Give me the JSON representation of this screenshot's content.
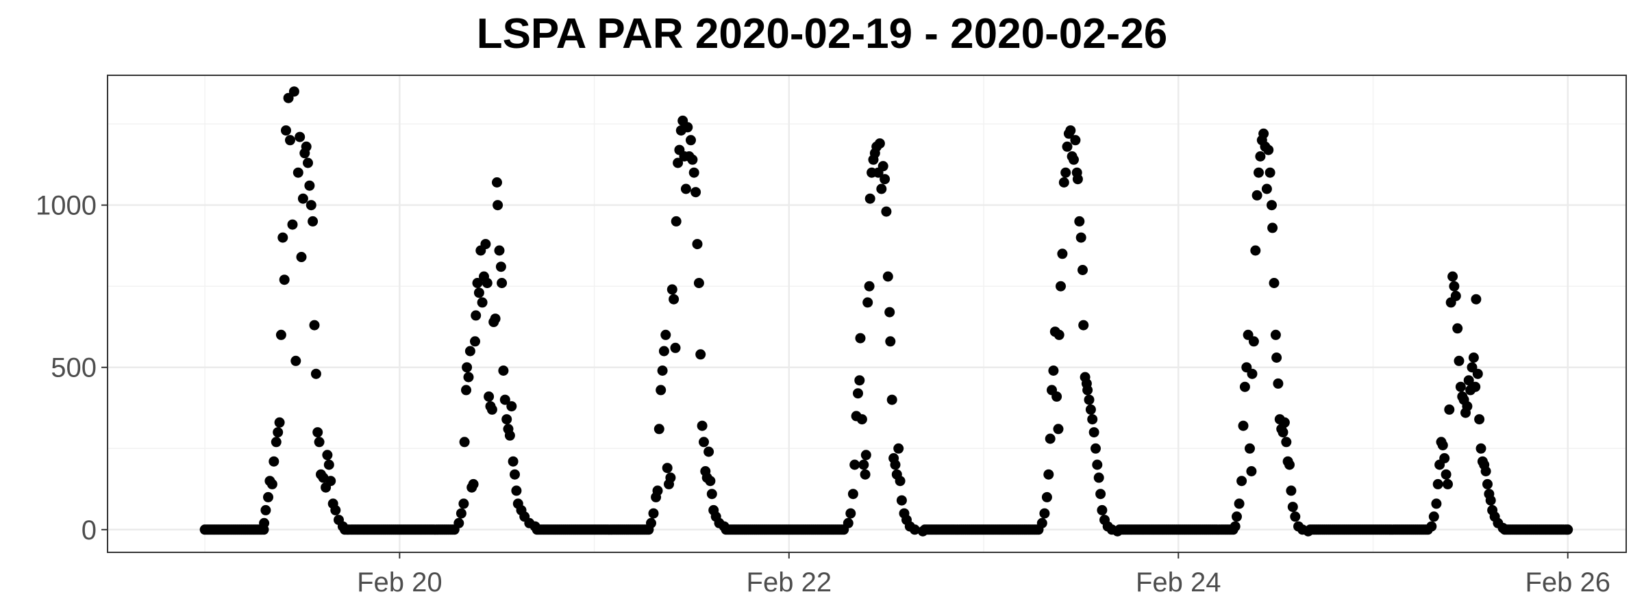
{
  "chart_data": {
    "type": "scatter",
    "title": "LSPA PAR 2020-02-19 - 2020-02-26",
    "xlabel": "",
    "ylabel": "",
    "x_axis": {
      "type": "date",
      "range": [
        "2020-02-19T00:00",
        "2020-02-26T00:00"
      ],
      "ticks": [
        {
          "value": "2020-02-20",
          "label": "Feb 20"
        },
        {
          "value": "2020-02-22",
          "label": "Feb 22"
        },
        {
          "value": "2020-02-24",
          "label": "Feb 24"
        },
        {
          "value": "2020-02-26",
          "label": "Feb 26"
        }
      ]
    },
    "y_axis": {
      "ylim": [
        -70,
        1400
      ],
      "ticks": [
        0,
        500,
        1000
      ],
      "tick_labels": [
        "0",
        "500",
        "1000"
      ]
    },
    "grid": true,
    "sampling_minutes": 15,
    "days": [
      {
        "date": "2020-02-19",
        "sunrise_h": 6.9,
        "sunset_h": 17.9,
        "points": [
          [
            7.3,
            20
          ],
          [
            7.5,
            60
          ],
          [
            7.8,
            100
          ],
          [
            8.0,
            150
          ],
          [
            8.3,
            140
          ],
          [
            8.5,
            210
          ],
          [
            8.8,
            270
          ],
          [
            9.0,
            300
          ],
          [
            9.2,
            330
          ],
          [
            9.4,
            600
          ],
          [
            9.6,
            900
          ],
          [
            9.8,
            770
          ],
          [
            10.0,
            1230
          ],
          [
            10.3,
            1330
          ],
          [
            10.5,
            1200
          ],
          [
            10.8,
            940
          ],
          [
            11.0,
            1350
          ],
          [
            11.2,
            520
          ],
          [
            11.5,
            1100
          ],
          [
            11.7,
            1210
          ],
          [
            11.9,
            840
          ],
          [
            12.1,
            1020
          ],
          [
            12.3,
            1160
          ],
          [
            12.5,
            1180
          ],
          [
            12.7,
            1130
          ],
          [
            12.9,
            1060
          ],
          [
            13.1,
            1000
          ],
          [
            13.3,
            950
          ],
          [
            13.5,
            630
          ],
          [
            13.7,
            480
          ],
          [
            13.9,
            300
          ],
          [
            14.1,
            270
          ],
          [
            14.3,
            170
          ],
          [
            14.6,
            160
          ],
          [
            14.9,
            130
          ],
          [
            15.1,
            230
          ],
          [
            15.3,
            200
          ],
          [
            15.5,
            150
          ],
          [
            15.8,
            80
          ],
          [
            16.1,
            60
          ],
          [
            16.5,
            30
          ],
          [
            17.0,
            10
          ]
        ]
      },
      {
        "date": "2020-02-20",
        "sunrise_h": 6.9,
        "sunset_h": 17.9,
        "points": [
          [
            7.3,
            20
          ],
          [
            7.6,
            50
          ],
          [
            7.9,
            80
          ],
          [
            8.0,
            270
          ],
          [
            8.2,
            430
          ],
          [
            8.3,
            500
          ],
          [
            8.5,
            470
          ],
          [
            8.7,
            550
          ],
          [
            8.9,
            130
          ],
          [
            9.1,
            140
          ],
          [
            9.3,
            580
          ],
          [
            9.4,
            660
          ],
          [
            9.6,
            760
          ],
          [
            9.8,
            730
          ],
          [
            10.0,
            860
          ],
          [
            10.2,
            700
          ],
          [
            10.4,
            780
          ],
          [
            10.6,
            880
          ],
          [
            10.8,
            760
          ],
          [
            11.0,
            410
          ],
          [
            11.2,
            380
          ],
          [
            11.4,
            370
          ],
          [
            11.6,
            640
          ],
          [
            11.8,
            650
          ],
          [
            12.0,
            1070
          ],
          [
            12.1,
            1000
          ],
          [
            12.3,
            860
          ],
          [
            12.5,
            810
          ],
          [
            12.6,
            760
          ],
          [
            12.8,
            490
          ],
          [
            13.0,
            400
          ],
          [
            13.2,
            340
          ],
          [
            13.4,
            310
          ],
          [
            13.6,
            290
          ],
          [
            13.8,
            380
          ],
          [
            14.0,
            210
          ],
          [
            14.2,
            170
          ],
          [
            14.4,
            120
          ],
          [
            14.6,
            80
          ],
          [
            15.0,
            60
          ],
          [
            15.4,
            40
          ],
          [
            16.0,
            20
          ],
          [
            16.7,
            10
          ]
        ]
      },
      {
        "date": "2020-02-21",
        "sunrise_h": 6.9,
        "sunset_h": 17.9,
        "points": [
          [
            7.0,
            20
          ],
          [
            7.3,
            50
          ],
          [
            7.6,
            100
          ],
          [
            7.8,
            120
          ],
          [
            8.0,
            310
          ],
          [
            8.2,
            430
          ],
          [
            8.4,
            490
          ],
          [
            8.6,
            550
          ],
          [
            8.8,
            600
          ],
          [
            9.0,
            190
          ],
          [
            9.2,
            140
          ],
          [
            9.4,
            160
          ],
          [
            9.6,
            740
          ],
          [
            9.8,
            710
          ],
          [
            10.0,
            560
          ],
          [
            10.1,
            950
          ],
          [
            10.3,
            1130
          ],
          [
            10.5,
            1170
          ],
          [
            10.7,
            1230
          ],
          [
            10.9,
            1260
          ],
          [
            11.1,
            1150
          ],
          [
            11.3,
            1050
          ],
          [
            11.5,
            1240
          ],
          [
            11.7,
            1150
          ],
          [
            11.9,
            1200
          ],
          [
            12.1,
            1140
          ],
          [
            12.3,
            1100
          ],
          [
            12.5,
            1040
          ],
          [
            12.7,
            880
          ],
          [
            12.9,
            760
          ],
          [
            13.1,
            540
          ],
          [
            13.3,
            320
          ],
          [
            13.5,
            270
          ],
          [
            13.7,
            180
          ],
          [
            13.9,
            160
          ],
          [
            14.1,
            240
          ],
          [
            14.3,
            150
          ],
          [
            14.5,
            110
          ],
          [
            14.7,
            60
          ],
          [
            15.0,
            40
          ],
          [
            15.4,
            20
          ],
          [
            16.0,
            10
          ]
        ]
      },
      {
        "date": "2020-02-22",
        "sunrise_h": 6.9,
        "sunset_h": 17.9,
        "points": [
          [
            7.3,
            20
          ],
          [
            7.6,
            50
          ],
          [
            7.9,
            110
          ],
          [
            8.1,
            200
          ],
          [
            8.3,
            350
          ],
          [
            8.5,
            420
          ],
          [
            8.7,
            460
          ],
          [
            8.8,
            590
          ],
          [
            9.0,
            340
          ],
          [
            9.2,
            200
          ],
          [
            9.4,
            170
          ],
          [
            9.5,
            230
          ],
          [
            9.7,
            700
          ],
          [
            9.9,
            750
          ],
          [
            10.0,
            1020
          ],
          [
            10.2,
            1100
          ],
          [
            10.4,
            1140
          ],
          [
            10.6,
            1160
          ],
          [
            10.8,
            1180
          ],
          [
            11.0,
            1100
          ],
          [
            11.2,
            1190
          ],
          [
            11.4,
            1050
          ],
          [
            11.6,
            1120
          ],
          [
            11.8,
            1080
          ],
          [
            12.0,
            980
          ],
          [
            12.2,
            780
          ],
          [
            12.4,
            670
          ],
          [
            12.5,
            580
          ],
          [
            12.7,
            400
          ],
          [
            12.9,
            220
          ],
          [
            13.1,
            200
          ],
          [
            13.3,
            170
          ],
          [
            13.5,
            250
          ],
          [
            13.7,
            150
          ],
          [
            13.9,
            90
          ],
          [
            14.2,
            50
          ],
          [
            14.5,
            30
          ],
          [
            14.9,
            10
          ],
          [
            15.5,
            0
          ],
          [
            16.5,
            -5
          ]
        ]
      },
      {
        "date": "2020-02-23",
        "sunrise_h": 6.9,
        "sunset_h": 17.9,
        "points": [
          [
            7.2,
            20
          ],
          [
            7.5,
            50
          ],
          [
            7.8,
            100
          ],
          [
            8.0,
            170
          ],
          [
            8.2,
            280
          ],
          [
            8.4,
            430
          ],
          [
            8.6,
            490
          ],
          [
            8.8,
            610
          ],
          [
            9.0,
            410
          ],
          [
            9.2,
            310
          ],
          [
            9.3,
            600
          ],
          [
            9.5,
            750
          ],
          [
            9.7,
            850
          ],
          [
            9.9,
            1070
          ],
          [
            10.1,
            1100
          ],
          [
            10.3,
            1180
          ],
          [
            10.5,
            1220
          ],
          [
            10.7,
            1230
          ],
          [
            10.9,
            1150
          ],
          [
            11.1,
            1140
          ],
          [
            11.3,
            1200
          ],
          [
            11.5,
            1100
          ],
          [
            11.6,
            1080
          ],
          [
            11.8,
            950
          ],
          [
            12.0,
            900
          ],
          [
            12.2,
            800
          ],
          [
            12.3,
            630
          ],
          [
            12.5,
            470
          ],
          [
            12.7,
            450
          ],
          [
            12.8,
            430
          ],
          [
            13.0,
            400
          ],
          [
            13.2,
            370
          ],
          [
            13.4,
            340
          ],
          [
            13.6,
            300
          ],
          [
            13.8,
            250
          ],
          [
            14.0,
            200
          ],
          [
            14.2,
            160
          ],
          [
            14.4,
            110
          ],
          [
            14.6,
            60
          ],
          [
            14.9,
            30
          ],
          [
            15.3,
            10
          ],
          [
            15.8,
            0
          ],
          [
            16.5,
            -5
          ]
        ]
      },
      {
        "date": "2020-02-24",
        "sunrise_h": 6.9,
        "sunset_h": 17.9,
        "points": [
          [
            7.0,
            10
          ],
          [
            7.2,
            40
          ],
          [
            7.5,
            80
          ],
          [
            7.8,
            150
          ],
          [
            8.0,
            320
          ],
          [
            8.2,
            440
          ],
          [
            8.4,
            500
          ],
          [
            8.6,
            600
          ],
          [
            8.8,
            250
          ],
          [
            9.0,
            180
          ],
          [
            9.1,
            480
          ],
          [
            9.3,
            580
          ],
          [
            9.5,
            860
          ],
          [
            9.7,
            1030
          ],
          [
            9.9,
            1100
          ],
          [
            10.1,
            1150
          ],
          [
            10.3,
            1200
          ],
          [
            10.5,
            1220
          ],
          [
            10.7,
            1180
          ],
          [
            10.9,
            1050
          ],
          [
            11.1,
            1170
          ],
          [
            11.3,
            1100
          ],
          [
            11.5,
            1000
          ],
          [
            11.6,
            930
          ],
          [
            11.8,
            760
          ],
          [
            12.0,
            600
          ],
          [
            12.1,
            530
          ],
          [
            12.3,
            450
          ],
          [
            12.5,
            340
          ],
          [
            12.7,
            310
          ],
          [
            12.9,
            300
          ],
          [
            13.1,
            330
          ],
          [
            13.3,
            270
          ],
          [
            13.5,
            210
          ],
          [
            13.7,
            200
          ],
          [
            13.9,
            120
          ],
          [
            14.1,
            70
          ],
          [
            14.4,
            40
          ],
          [
            14.8,
            10
          ],
          [
            15.3,
            0
          ],
          [
            16.0,
            -5
          ]
        ]
      },
      {
        "date": "2020-02-25",
        "sunrise_h": 6.9,
        "sunset_h": 17.9,
        "points": [
          [
            7.2,
            10
          ],
          [
            7.5,
            40
          ],
          [
            7.8,
            80
          ],
          [
            8.0,
            140
          ],
          [
            8.2,
            200
          ],
          [
            8.4,
            270
          ],
          [
            8.6,
            260
          ],
          [
            8.8,
            220
          ],
          [
            9.0,
            170
          ],
          [
            9.2,
            140
          ],
          [
            9.4,
            370
          ],
          [
            9.6,
            700
          ],
          [
            9.8,
            780
          ],
          [
            10.0,
            750
          ],
          [
            10.2,
            720
          ],
          [
            10.4,
            620
          ],
          [
            10.6,
            520
          ],
          [
            10.8,
            440
          ],
          [
            11.0,
            410
          ],
          [
            11.2,
            400
          ],
          [
            11.4,
            360
          ],
          [
            11.6,
            380
          ],
          [
            11.8,
            460
          ],
          [
            12.0,
            430
          ],
          [
            12.2,
            500
          ],
          [
            12.4,
            530
          ],
          [
            12.6,
            440
          ],
          [
            12.7,
            710
          ],
          [
            12.9,
            480
          ],
          [
            13.1,
            340
          ],
          [
            13.3,
            250
          ],
          [
            13.5,
            210
          ],
          [
            13.7,
            200
          ],
          [
            13.9,
            180
          ],
          [
            14.1,
            140
          ],
          [
            14.3,
            110
          ],
          [
            14.5,
            90
          ],
          [
            14.7,
            60
          ],
          [
            15.0,
            40
          ],
          [
            15.4,
            20
          ],
          [
            16.0,
            5
          ]
        ]
      }
    ]
  }
}
